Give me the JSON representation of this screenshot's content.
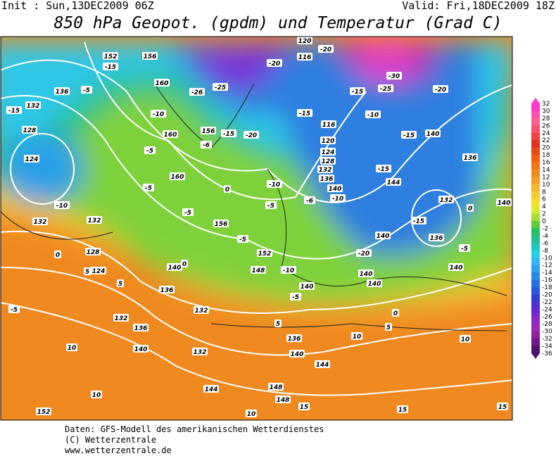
{
  "header": {
    "init": "Init : Sun,13DEC2009 06Z",
    "valid": "Valid: Fri,18DEC2009 18Z",
    "title": "850 hPa Geopot. (gpdm) und Temperatur (Grad C)"
  },
  "map": {
    "labels": [
      "152",
      "136",
      "132",
      "128",
      "124",
      "132",
      "132",
      "128",
      "124",
      "140",
      "136",
      "132",
      "132",
      "136",
      "140",
      "132",
      "144",
      "152",
      "148",
      "148",
      "144",
      "140",
      "136",
      "140",
      "148",
      "152",
      "156",
      "160",
      "160",
      "156",
      "160",
      "156",
      "116",
      "120",
      "116",
      "120",
      "124",
      "128",
      "132",
      "136",
      "140",
      "144",
      "140",
      "136",
      "132",
      "136",
      "140",
      "140",
      "140",
      "140",
      "140",
      "-15",
      "-5",
      "-15",
      "-10",
      "-5",
      "-5",
      "-5",
      "-6",
      "-15",
      "-20",
      "-10",
      "-26",
      "-25",
      "-20",
      "-20",
      "-30",
      "-25",
      "-20",
      "-15",
      "-15",
      "-10",
      "-15",
      "-15",
      "-10",
      "-5",
      "-6",
      "-10",
      "-5",
      "-10",
      "-20",
      "-15",
      "-5",
      "0",
      "0",
      "0",
      "0",
      "5",
      "5",
      "-5",
      "10",
      "10",
      "15",
      "5",
      "10",
      "5",
      "0",
      "10",
      "15",
      "15",
      "10",
      "-5"
    ]
  },
  "colorbar": {
    "labels": [
      "32",
      "30",
      "28",
      "26",
      "24",
      "22",
      "20",
      "18",
      "16",
      "14",
      "12",
      "10",
      "8",
      "6",
      "4",
      "2",
      "0",
      "-2",
      "-4",
      "-6",
      "-8",
      "-10",
      "-12",
      "-14",
      "-16",
      "-18",
      "-20",
      "-22",
      "-24",
      "-26",
      "-28",
      "-30",
      "-32",
      "-34",
      "-36"
    ]
  },
  "footer": {
    "lines": [
      "Daten: GFS-Modell des amerikanischen Wetterdienstes",
      "(C) Wetterzentrale",
      "www.wetterzentrale.de"
    ]
  }
}
